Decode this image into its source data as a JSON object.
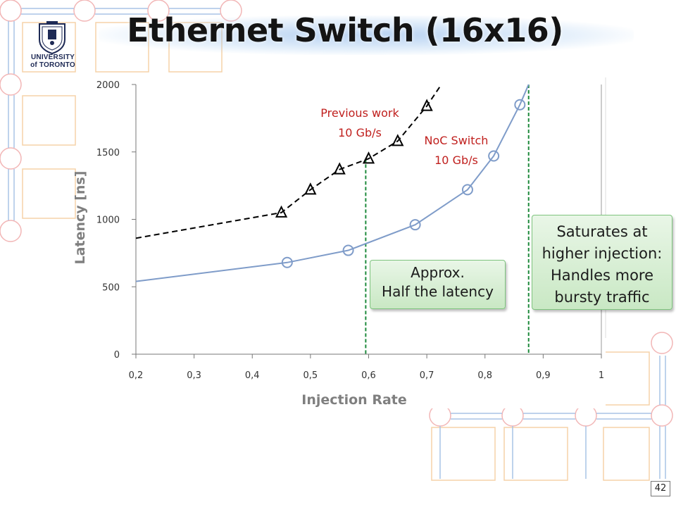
{
  "slide": {
    "title": "Ethernet Switch (16x16)",
    "logo": {
      "text_line1": "UNIVERSITY",
      "text_line2": "of TORONTO",
      "icon": "crest-icon"
    },
    "page_number": "42"
  },
  "chart_data": {
    "type": "line",
    "xlabel": "Injection Rate",
    "ylabel": "Latency [ns]",
    "xlim": [
      0.2,
      1
    ],
    "ylim": [
      0,
      2000
    ],
    "x_ticks": [
      "0,2",
      "0,3",
      "0,4",
      "0,5",
      "0,6",
      "0,7",
      "0,8",
      "0,9",
      "1"
    ],
    "y_ticks": [
      "0",
      "500",
      "1000",
      "1500",
      "2000"
    ],
    "grid": false,
    "series": [
      {
        "name": "Previous work 10 Gb/s",
        "label_lines": [
          "Previous work",
          "10 Gb/s"
        ],
        "style": "dashed",
        "marker": "triangle",
        "color": "#000000",
        "label_color": "#c0201e",
        "line_points": {
          "x": [
            0.2,
            0.45,
            0.5,
            0.55,
            0.6,
            0.65,
            0.7,
            0.725
          ],
          "y": [
            860,
            1050,
            1220,
            1370,
            1450,
            1580,
            1840,
            2000
          ]
        },
        "markers": {
          "x": [
            0.45,
            0.5,
            0.55,
            0.6,
            0.65,
            0.7
          ],
          "y": [
            1050,
            1220,
            1370,
            1450,
            1580,
            1840
          ]
        }
      },
      {
        "name": "NoC Switch 10 Gb/s",
        "label_lines": [
          "NoC Switch",
          "10 Gb/s"
        ],
        "style": "solid",
        "marker": "circle",
        "color": "#7f9cc9",
        "label_color": "#c0201e",
        "line_points": {
          "x": [
            0.2,
            0.46,
            0.565,
            0.68,
            0.77,
            0.815,
            0.86,
            0.875
          ],
          "y": [
            540,
            680,
            770,
            960,
            1220,
            1470,
            1850,
            2000
          ]
        },
        "markers": {
          "x": [
            0.46,
            0.565,
            0.68,
            0.77,
            0.815,
            0.86
          ],
          "y": [
            680,
            770,
            960,
            1220,
            1470,
            1850
          ]
        }
      }
    ],
    "reference_lines": [
      {
        "x": 0.595,
        "y_from": 0,
        "y_to": 1450,
        "style": "dashed",
        "color": "#1e8a3c"
      },
      {
        "x": 0.875,
        "y_from": 0,
        "y_to": 2000,
        "style": "dashed",
        "color": "#1e8a3c"
      }
    ],
    "annotations": [
      {
        "id": "half",
        "lines": [
          "Approx.",
          "Half the latency"
        ]
      },
      {
        "id": "sat",
        "lines": [
          "Saturates at",
          "higher injection:",
          "Handles more",
          "bursty traffic"
        ]
      }
    ]
  }
}
